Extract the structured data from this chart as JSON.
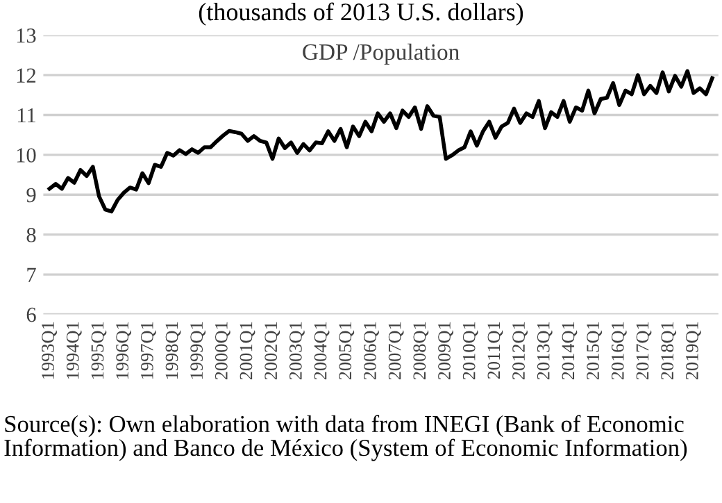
{
  "chart_data": {
    "type": "line",
    "title": "(thousands of 2013 U.S. dollars)",
    "subtitle": "GDP /Population",
    "categories": [
      "1993Q1",
      null,
      null,
      null,
      "1994Q1",
      null,
      null,
      null,
      "1995Q1",
      null,
      null,
      null,
      "1996Q1",
      null,
      null,
      null,
      "1997Q1",
      null,
      null,
      null,
      "1998Q1",
      null,
      null,
      null,
      "1999Q1",
      null,
      null,
      null,
      "2000Q1",
      null,
      null,
      null,
      "2001Q1",
      null,
      null,
      null,
      "2002Q1",
      null,
      null,
      null,
      "2003Q1",
      null,
      null,
      null,
      "2004Q1",
      null,
      null,
      null,
      "2005Q1",
      null,
      null,
      null,
      "2006Q1",
      null,
      null,
      null,
      "2007Q1",
      null,
      null,
      null,
      "2008Q1",
      null,
      null,
      null,
      "2009Q1",
      null,
      null,
      null,
      "2010Q1",
      null,
      null,
      null,
      "2011Q1",
      null,
      null,
      null,
      "2012Q1",
      null,
      null,
      null,
      "2013Q1",
      null,
      null,
      null,
      "2014Q1",
      null,
      null,
      null,
      "2015Q1",
      null,
      null,
      null,
      "2016Q1",
      null,
      null,
      null,
      "2017Q1",
      null,
      null,
      null,
      "2018Q1",
      null,
      null,
      null,
      "2019Q1",
      null,
      null,
      null
    ],
    "series": [
      {
        "color": "#000000",
        "values": [
          9.15,
          9.27,
          9.15,
          9.42,
          9.3,
          9.62,
          9.47,
          9.7,
          8.96,
          8.63,
          8.58,
          8.87,
          9.05,
          9.18,
          9.13,
          9.54,
          9.29,
          9.75,
          9.7,
          10.05,
          9.98,
          10.12,
          10.02,
          10.14,
          10.05,
          10.19,
          10.19,
          10.34,
          10.48,
          10.6,
          10.57,
          10.53,
          10.35,
          10.47,
          10.35,
          10.31,
          9.9,
          10.41,
          10.17,
          10.31,
          10.05,
          10.27,
          10.11,
          10.31,
          10.29,
          10.59,
          10.35,
          10.65,
          10.19,
          10.71,
          10.47,
          10.83,
          10.59,
          11.04,
          10.83,
          11.04,
          10.67,
          11.11,
          10.95,
          11.19,
          10.65,
          11.22,
          10.98,
          10.95,
          9.9,
          9.99,
          10.11,
          10.19,
          10.59,
          10.23,
          10.59,
          10.83,
          10.43,
          10.71,
          10.8,
          11.16,
          10.8,
          11.04,
          10.95,
          11.35,
          10.67,
          11.07,
          10.95,
          11.35,
          10.83,
          11.19,
          11.11,
          11.61,
          11.04,
          11.4,
          11.43,
          11.8,
          11.25,
          11.61,
          11.52,
          12.0,
          11.52,
          11.73,
          11.55,
          12.07,
          11.59,
          11.98,
          11.71,
          12.1,
          11.55,
          11.67,
          11.52,
          11.92
        ]
      }
    ],
    "ylim": [
      6,
      13
    ],
    "yticks": [
      6,
      7,
      8,
      9,
      10,
      11,
      12,
      13
    ],
    "grid": "y",
    "line_style": "solid",
    "annotations": [
      "Source(s): Own elaboration with data from INEGI (Bank of Economic Information) and Banco de México (System of Economic Information)"
    ]
  }
}
